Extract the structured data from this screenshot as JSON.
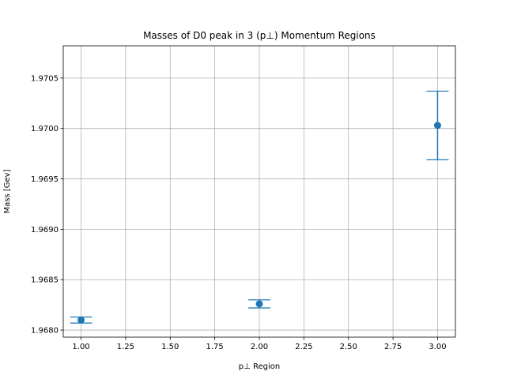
{
  "chart_data": {
    "type": "scatter",
    "title": "Masses of D0 peak in 3 (p⊥) Momentum Regions",
    "xlabel": "p⊥ Region",
    "ylabel": "Mass [Gev]",
    "xlim": [
      0.9,
      3.1
    ],
    "ylim": [
      1.96793,
      1.97082
    ],
    "grid": true,
    "xticks": [
      1.0,
      1.25,
      1.5,
      1.75,
      2.0,
      2.25,
      2.5,
      2.75,
      3.0
    ],
    "xtick_labels": [
      "1.00",
      "1.25",
      "1.50",
      "1.75",
      "2.00",
      "2.25",
      "2.50",
      "2.75",
      "3.00"
    ],
    "yticks": [
      1.968,
      1.9685,
      1.969,
      1.9695,
      1.97,
      1.9705
    ],
    "ytick_labels": [
      "1.9680",
      "1.9685",
      "1.9690",
      "1.9695",
      "1.9700",
      "1.9705"
    ],
    "color": "#1f77b4",
    "series": [
      {
        "x": [
          1,
          2,
          3
        ],
        "y": [
          1.9681,
          1.96826,
          1.97003
        ],
        "yerr": [
          3e-05,
          4e-05,
          0.00034
        ]
      }
    ]
  }
}
